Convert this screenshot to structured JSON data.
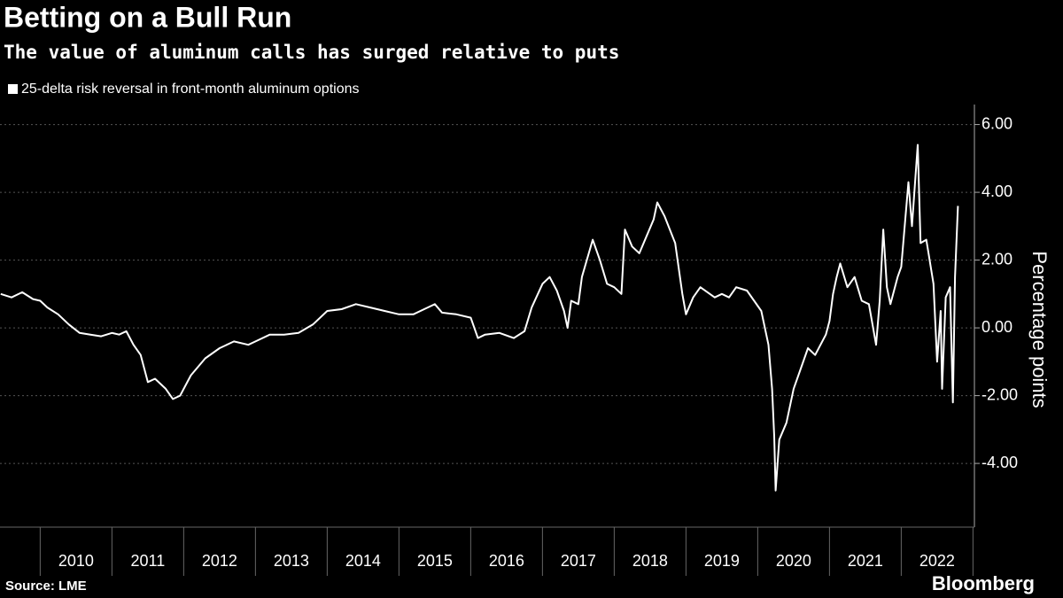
{
  "chart_data": {
    "type": "line",
    "title": "Betting on a Bull Run",
    "subtitle": "The value of aluminum calls has surged relative to puts",
    "y_label": "Percentage points",
    "source": "Source: LME",
    "brand": "Bloomberg",
    "grid": true,
    "xlim": [
      2009.44,
      2023.02
    ],
    "ylim": [
      -5.88,
      6.59
    ],
    "xticks": [
      {
        "value": 2010,
        "label": "2010"
      },
      {
        "value": 2011,
        "label": "2011"
      },
      {
        "value": 2012,
        "label": "2012"
      },
      {
        "value": 2013,
        "label": "2013"
      },
      {
        "value": 2014,
        "label": "2014"
      },
      {
        "value": 2015,
        "label": "2015"
      },
      {
        "value": 2016,
        "label": "2016"
      },
      {
        "value": 2017,
        "label": "2017"
      },
      {
        "value": 2018,
        "label": "2018"
      },
      {
        "value": 2019,
        "label": "2019"
      },
      {
        "value": 2020,
        "label": "2020"
      },
      {
        "value": 2021,
        "label": "2021"
      },
      {
        "value": 2022,
        "label": "2022"
      }
    ],
    "yticks": [
      {
        "value": 6,
        "label": "6.00"
      },
      {
        "value": 4,
        "label": "4.00"
      },
      {
        "value": 2,
        "label": "2.00"
      },
      {
        "value": 0,
        "label": "0.00"
      },
      {
        "value": -2,
        "label": "-2.00"
      },
      {
        "value": -4,
        "label": "-4.00"
      }
    ],
    "series": [
      {
        "name": "25-delta risk reversal in front-month aluminum options",
        "color": "#ffffff",
        "x": [
          2009.45,
          2009.6,
          2009.75,
          2009.9,
          2010.0,
          2010.1,
          2010.25,
          2010.4,
          2010.55,
          2010.7,
          2010.85,
          2011.0,
          2011.1,
          2011.2,
          2011.3,
          2011.4,
          2011.5,
          2011.6,
          2011.75,
          2011.85,
          2011.95,
          2012.1,
          2012.3,
          2012.5,
          2012.7,
          2012.9,
          2013.0,
          2013.2,
          2013.4,
          2013.6,
          2013.8,
          2014.0,
          2014.2,
          2014.4,
          2014.6,
          2014.8,
          2015.0,
          2015.2,
          2015.4,
          2015.5,
          2015.6,
          2015.8,
          2016.0,
          2016.1,
          2016.2,
          2016.4,
          2016.6,
          2016.75,
          2016.85,
          2017.0,
          2017.1,
          2017.2,
          2017.3,
          2017.35,
          2017.4,
          2017.5,
          2017.55,
          2017.7,
          2017.8,
          2017.9,
          2018.0,
          2018.1,
          2018.15,
          2018.25,
          2018.35,
          2018.45,
          2018.55,
          2018.6,
          2018.7,
          2018.85,
          2018.95,
          2019.0,
          2019.1,
          2019.2,
          2019.4,
          2019.5,
          2019.6,
          2019.7,
          2019.85,
          2019.95,
          2020.05,
          2020.15,
          2020.2,
          2020.23,
          2020.25,
          2020.3,
          2020.4,
          2020.5,
          2020.6,
          2020.7,
          2020.8,
          2020.95,
          2021.0,
          2021.05,
          2021.1,
          2021.15,
          2021.25,
          2021.35,
          2021.45,
          2021.55,
          2021.65,
          2021.7,
          2021.75,
          2021.8,
          2021.85,
          2021.95,
          2022.0,
          2022.1,
          2022.15,
          2022.23,
          2022.27,
          2022.35,
          2022.45,
          2022.5,
          2022.55,
          2022.57,
          2022.62,
          2022.68,
          2022.72,
          2022.75,
          2022.79
        ],
        "values": [
          1.0,
          0.9,
          1.05,
          0.85,
          0.8,
          0.6,
          0.4,
          0.1,
          -0.15,
          -0.2,
          -0.25,
          -0.15,
          -0.2,
          -0.1,
          -0.5,
          -0.8,
          -1.6,
          -1.5,
          -1.8,
          -2.1,
          -2.0,
          -1.4,
          -0.9,
          -0.6,
          -0.4,
          -0.5,
          -0.4,
          -0.2,
          -0.2,
          -0.15,
          0.1,
          0.5,
          0.55,
          0.7,
          0.6,
          0.5,
          0.4,
          0.4,
          0.6,
          0.7,
          0.45,
          0.4,
          0.3,
          -0.3,
          -0.2,
          -0.15,
          -0.3,
          -0.1,
          0.6,
          1.3,
          1.5,
          1.1,
          0.5,
          0.0,
          0.8,
          0.7,
          1.5,
          2.6,
          2.0,
          1.3,
          1.2,
          1.0,
          2.9,
          2.4,
          2.2,
          2.7,
          3.2,
          3.7,
          3.3,
          2.5,
          1.0,
          0.4,
          0.9,
          1.2,
          0.9,
          1.0,
          0.9,
          1.2,
          1.1,
          0.8,
          0.5,
          -0.5,
          -1.8,
          -3.2,
          -4.8,
          -3.3,
          -2.8,
          -1.8,
          -1.2,
          -0.6,
          -0.8,
          -0.2,
          0.2,
          1.0,
          1.5,
          1.9,
          1.2,
          1.5,
          0.8,
          0.7,
          -0.5,
          0.8,
          2.9,
          1.2,
          0.7,
          1.5,
          1.8,
          4.3,
          3.0,
          5.4,
          2.5,
          2.6,
          1.3,
          -1.0,
          0.5,
          -1.8,
          0.9,
          1.2,
          -2.2,
          1.5,
          3.6
        ]
      }
    ]
  }
}
